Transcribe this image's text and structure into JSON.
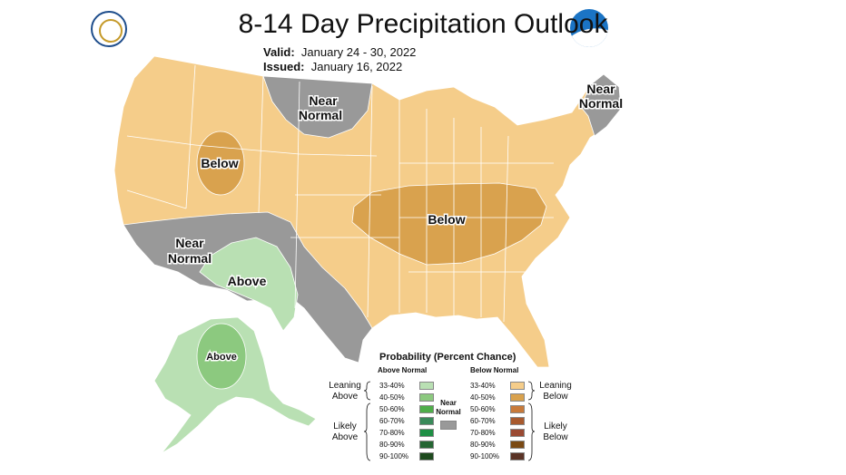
{
  "header": {
    "title": "8-14 Day Precipitation Outlook",
    "valid_label": "Valid:",
    "valid_value": "January 24 - 30, 2022",
    "issued_label": "Issued:",
    "issued_value": "January 16, 2022"
  },
  "map_labels": {
    "near_normal_north": [
      "Near",
      "Normal"
    ],
    "near_normal_northeast": [
      "Near",
      "Normal"
    ],
    "below_west": "Below",
    "below_central": "Below",
    "near_normal_southwest": [
      "Near",
      "Normal"
    ],
    "above_southwest": "Above",
    "above_alaska": "Above"
  },
  "colors": {
    "leaning_below": "#f5cd8a",
    "below_40_50": "#d9a24e",
    "near_normal": "#999999",
    "leaning_above": "#b9e0b3",
    "above_40_50": "#8cc97f",
    "ocean": "#ffffff",
    "boundary": "#ffffff"
  },
  "legend": {
    "title": "Probability (Percent Chance)",
    "above_header": "Above Normal",
    "below_header": "Below Normal",
    "near_normal": [
      "Near",
      "Normal"
    ],
    "leaning_above": [
      "Leaning",
      "Above"
    ],
    "likely_above": [
      "Likely",
      "Above"
    ],
    "leaning_below": [
      "Leaning",
      "Below"
    ],
    "likely_below": [
      "Likely",
      "Below"
    ],
    "above_bins": [
      {
        "label": "33-40%",
        "color": "#b9e0b3"
      },
      {
        "label": "40-50%",
        "color": "#8cc97f"
      },
      {
        "label": "50-60%",
        "color": "#4fae4a"
      },
      {
        "label": "60-70%",
        "color": "#3a8a5a"
      },
      {
        "label": "70-80%",
        "color": "#1f8f45"
      },
      {
        "label": "80-90%",
        "color": "#256633"
      },
      {
        "label": "90-100%",
        "color": "#1e4a1e"
      }
    ],
    "below_bins": [
      {
        "label": "33-40%",
        "color": "#f5cd8a"
      },
      {
        "label": "40-50%",
        "color": "#d9a24e"
      },
      {
        "label": "50-60%",
        "color": "#c87a3a"
      },
      {
        "label": "60-70%",
        "color": "#a85a2e"
      },
      {
        "label": "70-80%",
        "color": "#9a4a33"
      },
      {
        "label": "80-90%",
        "color": "#7a4a14"
      },
      {
        "label": "90-100%",
        "color": "#5a3326"
      }
    ],
    "near_normal_color": "#999999"
  },
  "icons": {
    "left_logo": "department-of-commerce-seal-icon",
    "right_logo": "noaa-logo-icon"
  }
}
